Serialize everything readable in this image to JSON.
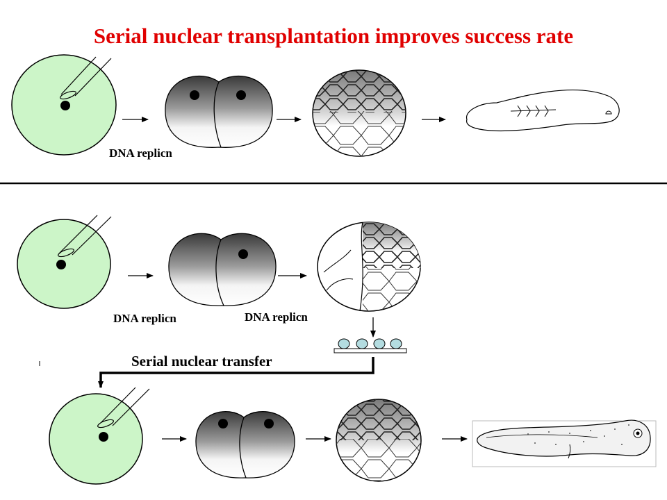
{
  "title": "Serial nuclear transplantation improves success rate",
  "labels": {
    "row1_dna": "DNA replicn",
    "row2_dna_a": "DNA replicn",
    "row2_dna_b": "DNA replicn",
    "serial_transfer": "Serial nuclear transfer"
  },
  "colors": {
    "title": "#e00000",
    "egg_fill": "#ccf5c8",
    "nucleus_dish": "#b3dce0"
  },
  "icons": [
    "micropipette-icon",
    "egg-cell-icon",
    "two-cell-embryo-icon",
    "blastula-icon",
    "sectioned-blastula-icon",
    "culture-dish-icon",
    "abnormal-larva-icon",
    "tadpole-icon"
  ]
}
